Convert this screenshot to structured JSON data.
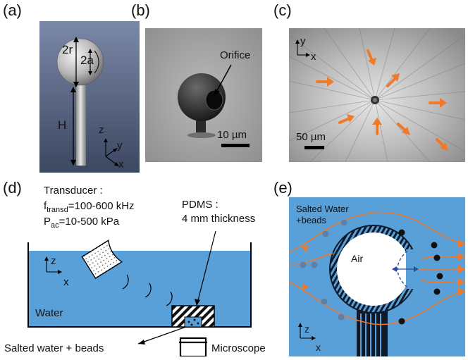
{
  "panels": {
    "a": {
      "label": "(a)",
      "dim_2r": "2r",
      "dim_2a": "2a",
      "dim_H": "H",
      "axis_z": "z",
      "axis_y": "y",
      "axis_x": "x"
    },
    "b": {
      "label": "(b)",
      "orifice": "Orifice",
      "scale": "10 µm"
    },
    "c": {
      "label": "(c)",
      "axis_y": "y",
      "axis_x": "x",
      "scale": "50 µm"
    },
    "d": {
      "label": "(d)",
      "transducer_title": "Transducer :",
      "f_main": "f",
      "f_sub": "transd",
      "f_value": "=100-600 kHz",
      "p_main": "P",
      "p_sub": "ac",
      "p_value": "=10-500 kPa",
      "pdms_line1": "PDMS :",
      "pdms_line2": "4 mm thickness",
      "axis_z": "z",
      "axis_x": "x",
      "water": "Water",
      "salted": "Salted water + beads",
      "microscope": "Microscope"
    },
    "e": {
      "label": "(e)",
      "salted_line1": "Salted Water",
      "salted_line2": "+beads",
      "air": "Air",
      "axis_z": "z",
      "axis_x": "x"
    }
  },
  "colors": {
    "water": "#5aa0d8",
    "flow_arrow": "#f07a2a",
    "bead": "#111111",
    "gray_render": "#5a6680",
    "sem_bg": "#a8a8a8"
  }
}
